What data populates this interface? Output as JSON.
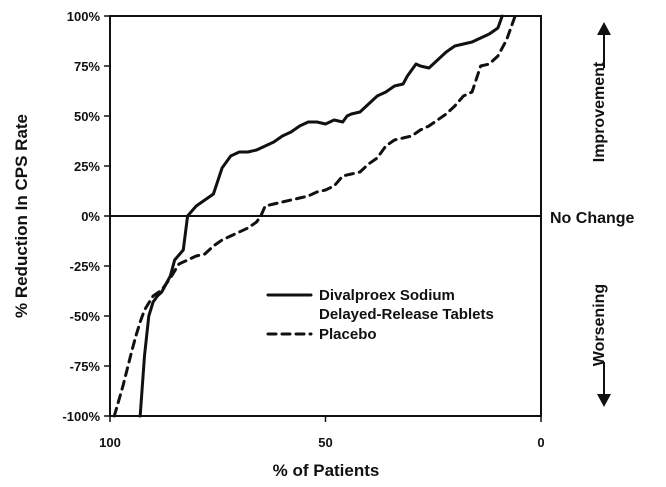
{
  "chart_data": {
    "type": "line",
    "title": "",
    "xlabel": "% of Patients",
    "ylabel": "% Reduction In CPS Rate",
    "xlim": [
      100,
      0
    ],
    "ylim": [
      -100,
      100
    ],
    "x_ticks": [
      100,
      50,
      0
    ],
    "x_tick_labels": [
      "100",
      "50",
      "0"
    ],
    "y_ticks": [
      100,
      75,
      50,
      25,
      0,
      -25,
      -50,
      -75,
      -100
    ],
    "y_tick_labels": [
      "100%",
      "75%",
      "50%",
      "25%",
      "0%",
      "-25%",
      "-50%",
      "-75%",
      "-100%"
    ],
    "grid": false,
    "legend_position": "lower-center",
    "legend": {
      "series_1_line_1": "Divalproex Sodium",
      "series_1_line_2": "Delayed-Release Tablets",
      "series_2": "Placebo"
    },
    "annotations": {
      "zero_line_label": "No Change",
      "upper_side_label": "Improvement",
      "lower_side_label": "Worsening"
    },
    "series": [
      {
        "name": "Divalproex Sodium Delayed-Release Tablets",
        "style": "solid",
        "x": [
          93,
          92,
          91,
          90,
          89,
          88,
          86,
          85,
          83,
          82,
          80,
          78,
          76,
          74,
          72,
          70,
          68,
          66,
          64,
          62,
          60,
          58,
          56,
          54,
          52,
          50,
          48,
          46,
          45,
          44,
          42,
          40,
          38,
          36,
          34,
          32,
          31,
          30,
          29,
          28,
          26,
          24,
          22,
          20,
          18,
          16,
          14,
          12,
          10,
          9
        ],
        "y": [
          -100,
          -70,
          -50,
          -43,
          -40,
          -38,
          -30,
          -22,
          -17,
          0,
          5,
          8,
          11,
          24,
          30,
          32,
          32,
          33,
          35,
          37,
          40,
          42,
          45,
          47,
          47,
          46,
          48,
          47,
          50,
          51,
          52,
          56,
          60,
          62,
          65,
          66,
          70,
          73,
          76,
          75,
          74,
          78,
          82,
          85,
          86,
          87,
          89,
          91,
          94,
          100
        ]
      },
      {
        "name": "Placebo",
        "style": "dashed",
        "x": [
          99,
          97,
          95,
          94,
          93,
          92,
          90,
          88,
          86,
          84,
          82,
          80,
          78,
          76,
          74,
          72,
          70,
          68,
          66,
          65,
          64,
          62,
          60,
          58,
          56,
          54,
          52,
          50,
          48,
          46,
          44,
          42,
          40,
          38,
          36,
          34,
          32,
          30,
          28,
          26,
          24,
          22,
          20,
          18,
          16,
          14,
          12,
          10,
          8,
          6
        ],
        "y": [
          -100,
          -85,
          -68,
          -60,
          -53,
          -47,
          -40,
          -37,
          -31,
          -24,
          -22,
          -20,
          -19,
          -15,
          -12,
          -10,
          -8,
          -6,
          -3,
          0,
          5,
          6,
          7,
          8,
          9,
          10,
          12,
          13,
          15,
          20,
          21,
          22,
          26,
          29,
          35,
          38,
          39,
          40,
          43,
          45,
          48,
          51,
          55,
          60,
          62,
          75,
          76,
          80,
          88,
          100
        ]
      }
    ]
  }
}
